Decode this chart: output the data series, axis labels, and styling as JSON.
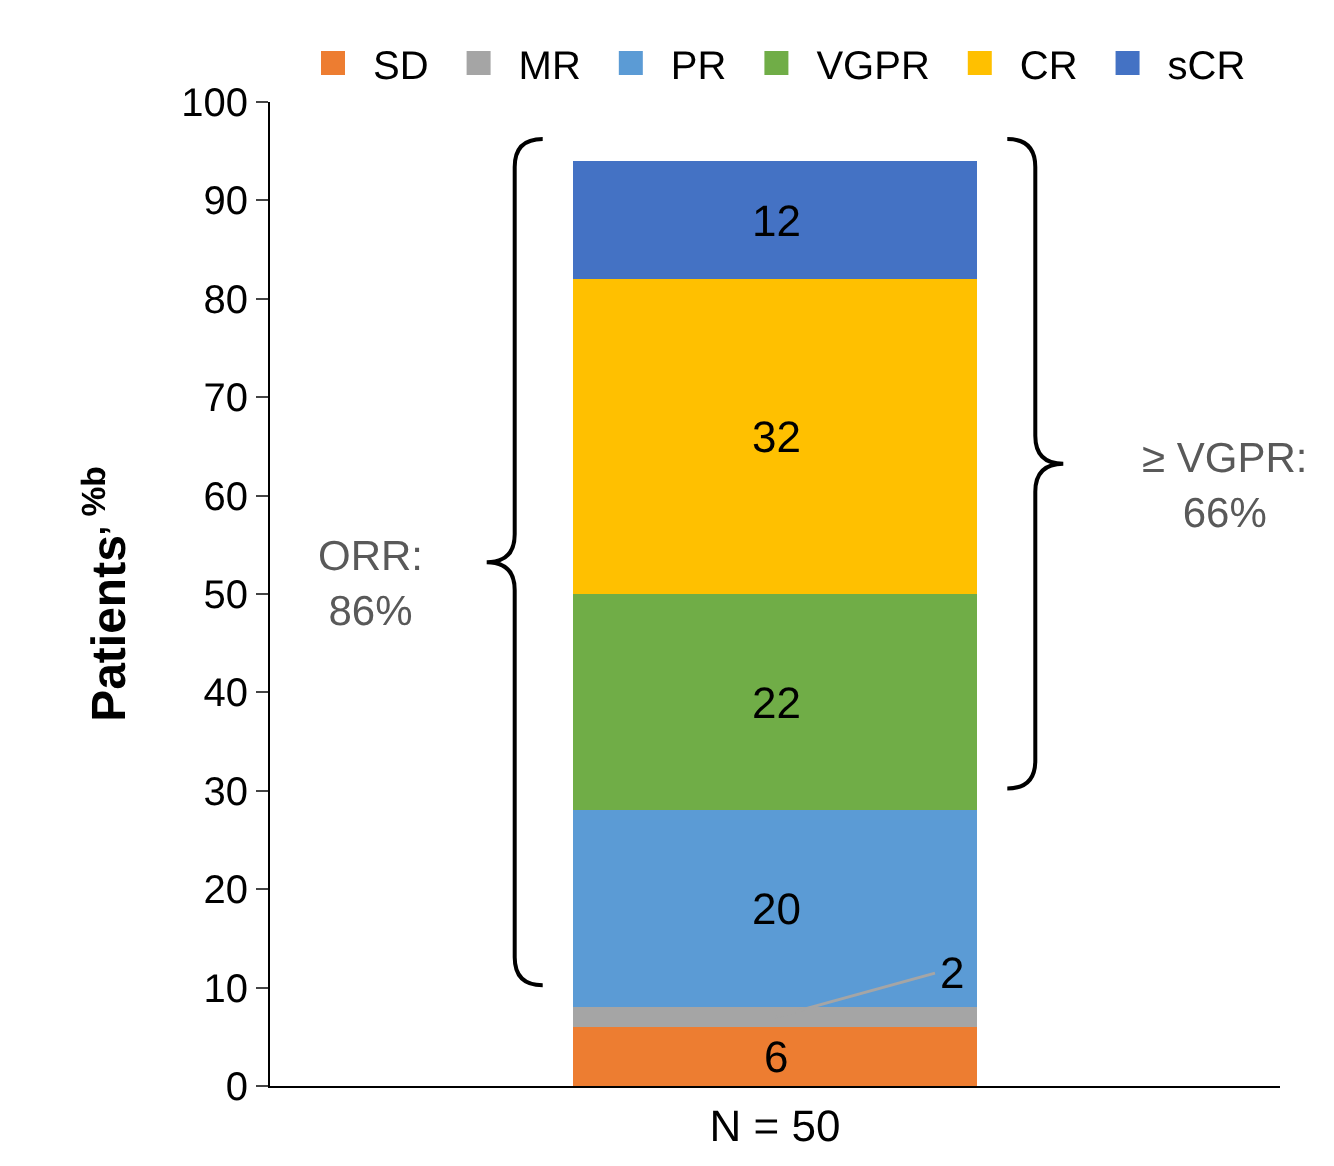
{
  "chart_data": {
    "type": "bar",
    "stacked": true,
    "categories": [
      "N = 50"
    ],
    "series": [
      {
        "name": "SD",
        "color": "#ed7d31",
        "values": [
          6
        ]
      },
      {
        "name": "MR",
        "color": "#a5a5a5",
        "values": [
          2
        ]
      },
      {
        "name": "PR",
        "color": "#5b9bd5",
        "values": [
          20
        ]
      },
      {
        "name": "VGPR",
        "color": "#70ad47",
        "values": [
          22
        ]
      },
      {
        "name": "CR",
        "color": "#ffc000",
        "values": [
          32
        ]
      },
      {
        "name": "sCR",
        "color": "#4472c4",
        "values": [
          12
        ]
      }
    ],
    "ylabel": "Patients$^{, %b}$",
    "ylim": [
      0,
      100
    ],
    "yticks": [
      0,
      10,
      20,
      30,
      40,
      50,
      60,
      70,
      80,
      90,
      100
    ],
    "annotations": [
      "ORR:\n86%",
      "≥ VGPR:\n66%"
    ],
    "data_labels": true,
    "grid": false,
    "legend": "top"
  }
}
